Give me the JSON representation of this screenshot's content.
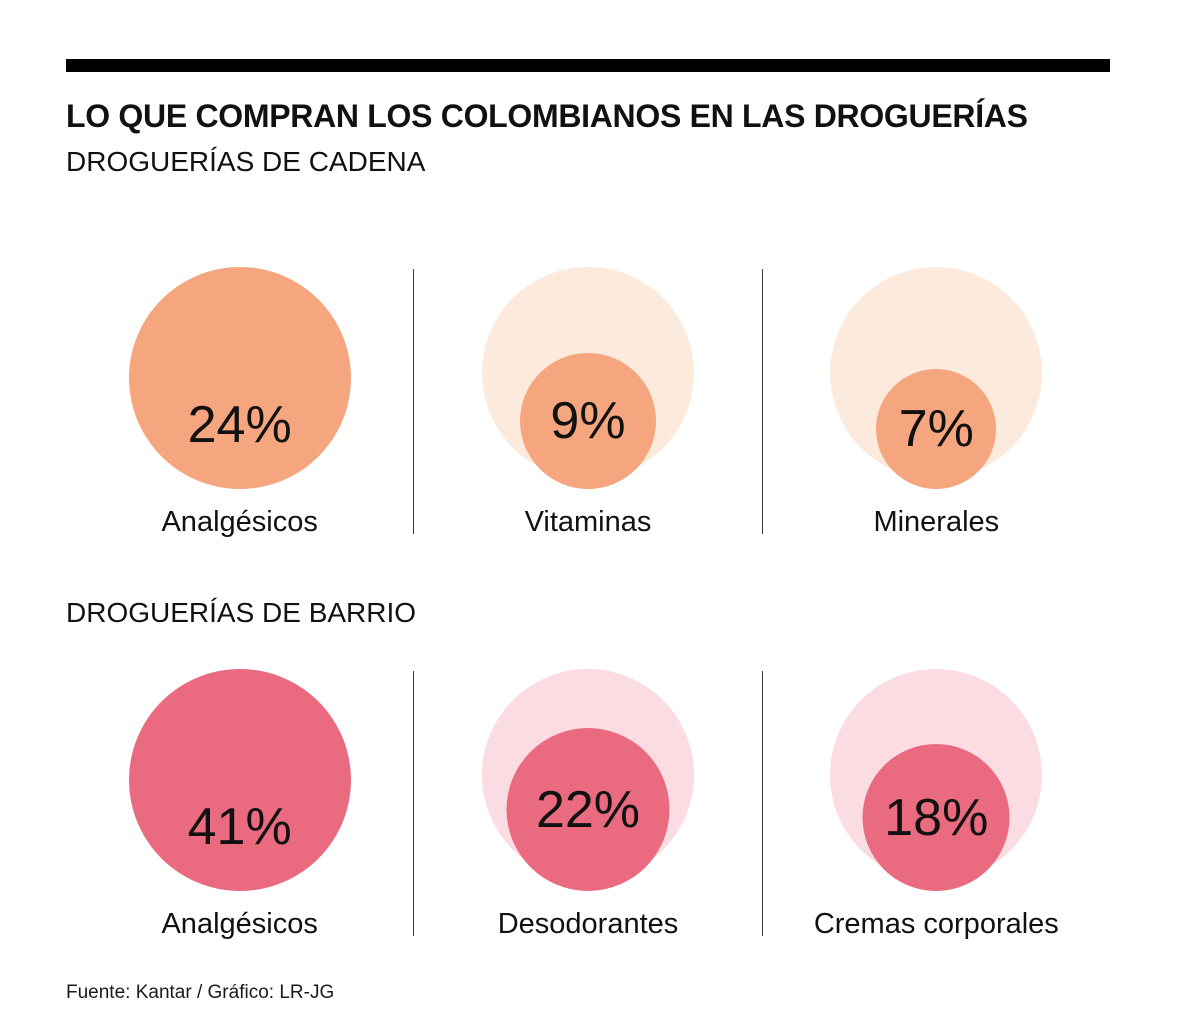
{
  "header": {
    "title": "LO QUE COMPRAN LOS COLOMBIANOS EN LAS DROGUERÍAS"
  },
  "sections": [
    {
      "title": "DROGUERÍAS DE CADENA",
      "items": [
        {
          "label": "Analgésicos",
          "value": "24%"
        },
        {
          "label": "Vitaminas",
          "value": "9%"
        },
        {
          "label": "Minerales",
          "value": "7%"
        }
      ]
    },
    {
      "title": "DROGUERÍAS DE BARRIO",
      "items": [
        {
          "label": "Analgésicos",
          "value": "41%"
        },
        {
          "label": "Desodorantes",
          "value": "22%"
        },
        {
          "label": "Cremas corporales",
          "value": "18%"
        }
      ]
    }
  ],
  "footer": {
    "source": "Fuente: Kantar / Gráfico: LR-JG"
  },
  "chart_data": [
    {
      "type": "bubble",
      "title": "DROGUERÍAS DE CADENA",
      "categories": [
        "Analgésicos",
        "Vitaminas",
        "Minerales"
      ],
      "values": [
        24,
        9,
        7
      ],
      "unit": "%",
      "colors": {
        "bubble": "#F6A67E",
        "halo": "#FCEADD"
      }
    },
    {
      "type": "bubble",
      "title": "DROGUERÍAS DE BARRIO",
      "categories": [
        "Analgésicos",
        "Desodorantes",
        "Cremas corporales"
      ],
      "values": [
        41,
        22,
        18
      ],
      "unit": "%",
      "colors": {
        "bubble": "#EA6A80",
        "halo": "#FBDCE3"
      }
    }
  ]
}
